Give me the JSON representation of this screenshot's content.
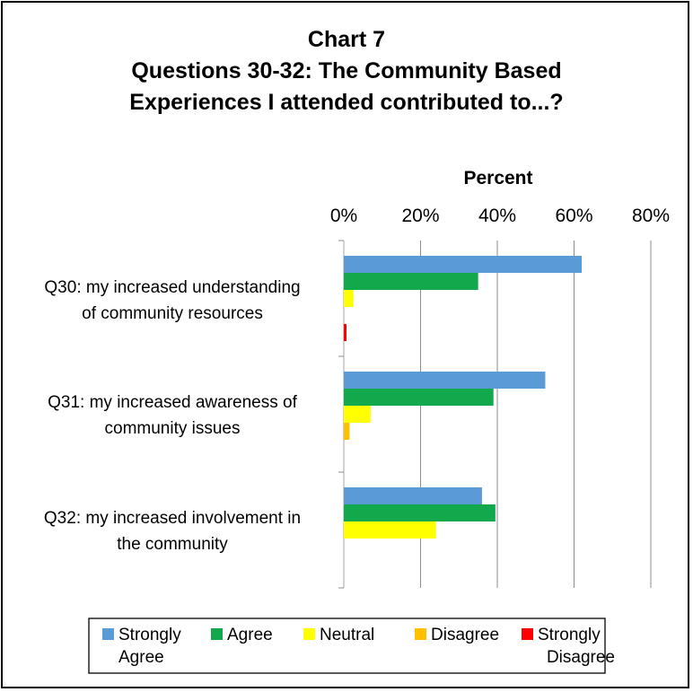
{
  "chart_data": {
    "type": "bar",
    "orientation": "horizontal",
    "title_lines": [
      "Chart 7",
      "Questions 30-32: The Community Based",
      "Experiences I attended contributed to...?"
    ],
    "xlabel": "Percent",
    "xlim": [
      0,
      80
    ],
    "x_ticks": [
      "0%",
      "20%",
      "40%",
      "60%",
      "80%"
    ],
    "x_axis_position": "top",
    "grid": true,
    "legend_position": "bottom",
    "categories": [
      [
        "Q30: my increased understanding",
        "of community resources"
      ],
      [
        "Q31: my increased awareness of",
        "community issues"
      ],
      [
        "Q32: my increased involvement in",
        "the community"
      ]
    ],
    "series": [
      {
        "name": [
          "Strongly",
          "Agree"
        ],
        "color": "#5b9bd5",
        "values": [
          62,
          52.5,
          36
        ]
      },
      {
        "name": [
          "Agree"
        ],
        "color": "#12a84c",
        "values": [
          35,
          39,
          39.5
        ]
      },
      {
        "name": [
          "Neutral"
        ],
        "color": "#ffff00",
        "values": [
          2.5,
          7,
          24
        ]
      },
      {
        "name": [
          "Disagree"
        ],
        "color": "#ffc000",
        "values": [
          0,
          1.5,
          0
        ]
      },
      {
        "name": [
          "Strongly",
          "Disagree"
        ],
        "color": "#ff0000",
        "values": [
          0.7,
          0,
          0
        ]
      }
    ]
  }
}
